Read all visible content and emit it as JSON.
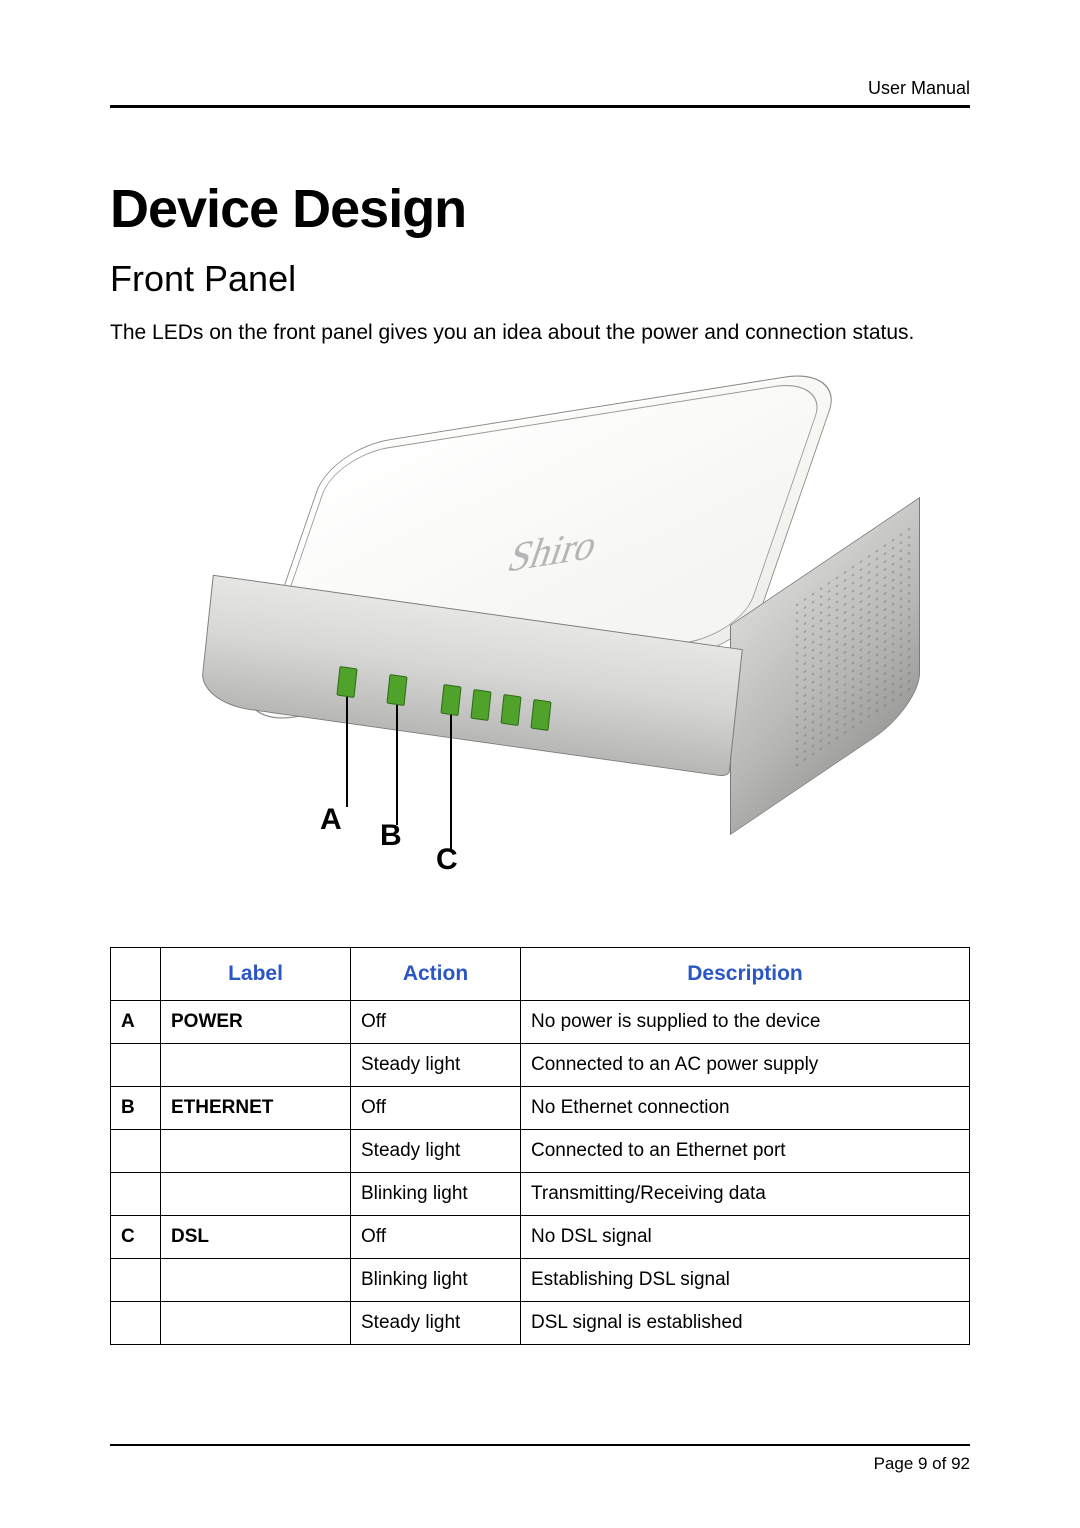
{
  "header": {
    "right": "User Manual"
  },
  "title": "Device Design",
  "subtitle": "Front Panel",
  "intro": "The LEDs on the front panel gives you an idea about the power and connection status.",
  "device": {
    "logo_text": "Shiro",
    "led_color": "#4fa32a",
    "callouts": {
      "A": "A",
      "B": "B",
      "C": "C"
    }
  },
  "table": {
    "header_color": "#2a57c5",
    "columns": [
      "",
      "Label",
      "Action",
      "Description"
    ],
    "rows": [
      {
        "id": "A",
        "label": "POWER",
        "action": "Off",
        "desc": "No power is supplied to the device"
      },
      {
        "id": "",
        "label": "",
        "action": "Steady light",
        "desc": "Connected to an AC power supply"
      },
      {
        "id": "B",
        "label": "ETHERNET",
        "action": "Off",
        "desc": "No Ethernet connection"
      },
      {
        "id": "",
        "label": "",
        "action": "Steady light",
        "desc": "Connected to an Ethernet port"
      },
      {
        "id": "",
        "label": "",
        "action": "Blinking light",
        "desc": "Transmitting/Receiving data"
      },
      {
        "id": "C",
        "label": "DSL",
        "action": "Off",
        "desc": "No DSL signal"
      },
      {
        "id": "",
        "label": "",
        "action": "Blinking light",
        "desc": "Establishing DSL signal"
      },
      {
        "id": "",
        "label": "",
        "action": "Steady light",
        "desc": "DSL signal is established"
      }
    ]
  },
  "footer": {
    "page_text": "Page 9 of 92"
  }
}
